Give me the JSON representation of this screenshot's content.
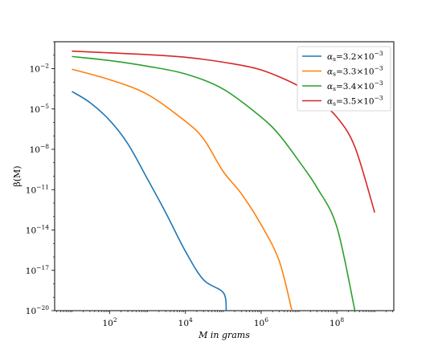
{
  "chart_data": {
    "type": "line",
    "xlabel": "M in grams",
    "ylabel": "β(M)",
    "xscale": "log",
    "yscale": "log",
    "xlim": [
      3.5,
      3200000000.0
    ],
    "ylim": [
      1e-20,
      1
    ],
    "x_ticks": [
      {
        "value": 100,
        "label": "10",
        "exp": "2"
      },
      {
        "value": 10000,
        "label": "10",
        "exp": "4"
      },
      {
        "value": 1000000,
        "label": "10",
        "exp": "6"
      },
      {
        "value": 100000000,
        "label": "10",
        "exp": "8"
      }
    ],
    "y_ticks": [
      {
        "value": 0.01,
        "label": "10",
        "exp": "−2"
      },
      {
        "value": 1e-05,
        "label": "10",
        "exp": "−5"
      },
      {
        "value": 1e-08,
        "label": "10",
        "exp": "−8"
      },
      {
        "value": 1e-11,
        "label": "10",
        "exp": "−11"
      },
      {
        "value": 1e-14,
        "label": "10",
        "exp": "−14"
      },
      {
        "value": 1e-17,
        "label": "10",
        "exp": "−17"
      },
      {
        "value": 1e-20,
        "label": "10",
        "exp": "−20"
      }
    ],
    "grid": false,
    "legend_position": "top-right",
    "series": [
      {
        "name": "αs=3.2×10−3",
        "legend_label": {
          "alpha": "α",
          "sub": "s",
          "value": "=3.2×10",
          "exp": "−3"
        },
        "color": "#1f77b4",
        "x": [
          10,
          30,
          100,
          300,
          1000,
          3000,
          10000,
          30000,
          100000,
          120000
        ],
        "y": [
          0.0002,
          3e-05,
          1.4e-06,
          2.6e-08,
          6e-11,
          2e-13,
          2.6e-16,
          2e-18,
          2.2e-19,
          1e-20
        ]
      },
      {
        "name": "αs=3.3×10−3",
        "legend_label": {
          "alpha": "α",
          "sub": "s",
          "value": "=3.3×10",
          "exp": "−3"
        },
        "color": "#ff7f0e",
        "x": [
          10,
          100,
          1000,
          10000,
          30000,
          100000,
          300000,
          1000000,
          3000000,
          6500000
        ],
        "y": [
          0.009,
          0.0015,
          0.00012,
          1.2e-06,
          6e-08,
          2.2e-10,
          5e-12,
          2.5e-14,
          5e-17,
          1e-20
        ]
      },
      {
        "name": "αs=3.4×10−3",
        "legend_label": {
          "alpha": "α",
          "sub": "s",
          "value": "=3.4×10",
          "exp": "−3"
        },
        "color": "#2ca02c",
        "x": [
          10,
          100,
          1000,
          10000,
          100000,
          1000000,
          3000000,
          10000000,
          30000000,
          100000000,
          300000000
        ],
        "y": [
          0.08,
          0.04,
          0.015,
          0.004,
          0.0003,
          2.5e-06,
          1.2e-07,
          1.3e-09,
          1.4e-11,
          1.7e-14,
          1e-20
        ]
      },
      {
        "name": "αs=3.5×10−3",
        "legend_label": {
          "alpha": "α",
          "sub": "s",
          "value": "=3.5×10",
          "exp": "−3"
        },
        "color": "#d62728",
        "x": [
          10,
          100,
          1000,
          10000,
          100000,
          1000000,
          10000000,
          30000000,
          100000000,
          300000000,
          1000000000
        ],
        "y": [
          0.2,
          0.15,
          0.11,
          0.07,
          0.03,
          0.008,
          0.0005,
          5e-05,
          2.5e-06,
          1.5e-08,
          2e-13
        ]
      }
    ]
  }
}
